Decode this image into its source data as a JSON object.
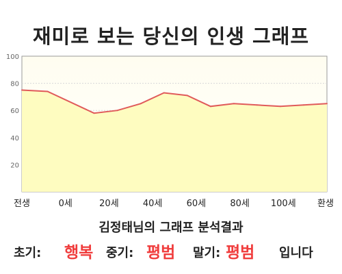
{
  "title": "재미로 보는 당신의 인생 그래프",
  "result_title": "김정태님의 그래프 분석결과",
  "summary": {
    "early_label": "초기:",
    "early_value": "행복",
    "mid_label": "중기:",
    "mid_value": "평범",
    "late_label": "말기:",
    "late_value": "평범",
    "suffix": "입니다"
  },
  "colors": {
    "line": "#e05a5a",
    "fill": "#fefcc0",
    "plot_bg_top": "#fffdf0",
    "value_text": "#f03c3c"
  },
  "chart_data": {
    "type": "area",
    "x_tick_labels": [
      "전생",
      "0세",
      "20세",
      "40세",
      "60세",
      "80세",
      "100세",
      "환생"
    ],
    "y_ticks": [
      20,
      40,
      60,
      80,
      100
    ],
    "ylim": [
      0,
      100
    ],
    "grid": true,
    "points": [
      {
        "age": -11,
        "value": 75
      },
      {
        "age": 0,
        "value": 74
      },
      {
        "age": 20,
        "value": 58
      },
      {
        "age": 30,
        "value": 60
      },
      {
        "age": 40,
        "value": 65
      },
      {
        "age": 50,
        "value": 73
      },
      {
        "age": 60,
        "value": 71
      },
      {
        "age": 70,
        "value": 63
      },
      {
        "age": 80,
        "value": 65
      },
      {
        "age": 90,
        "value": 64
      },
      {
        "age": 100,
        "value": 63
      },
      {
        "age": 110,
        "value": 64
      },
      {
        "age": 120,
        "value": 65
      }
    ]
  }
}
